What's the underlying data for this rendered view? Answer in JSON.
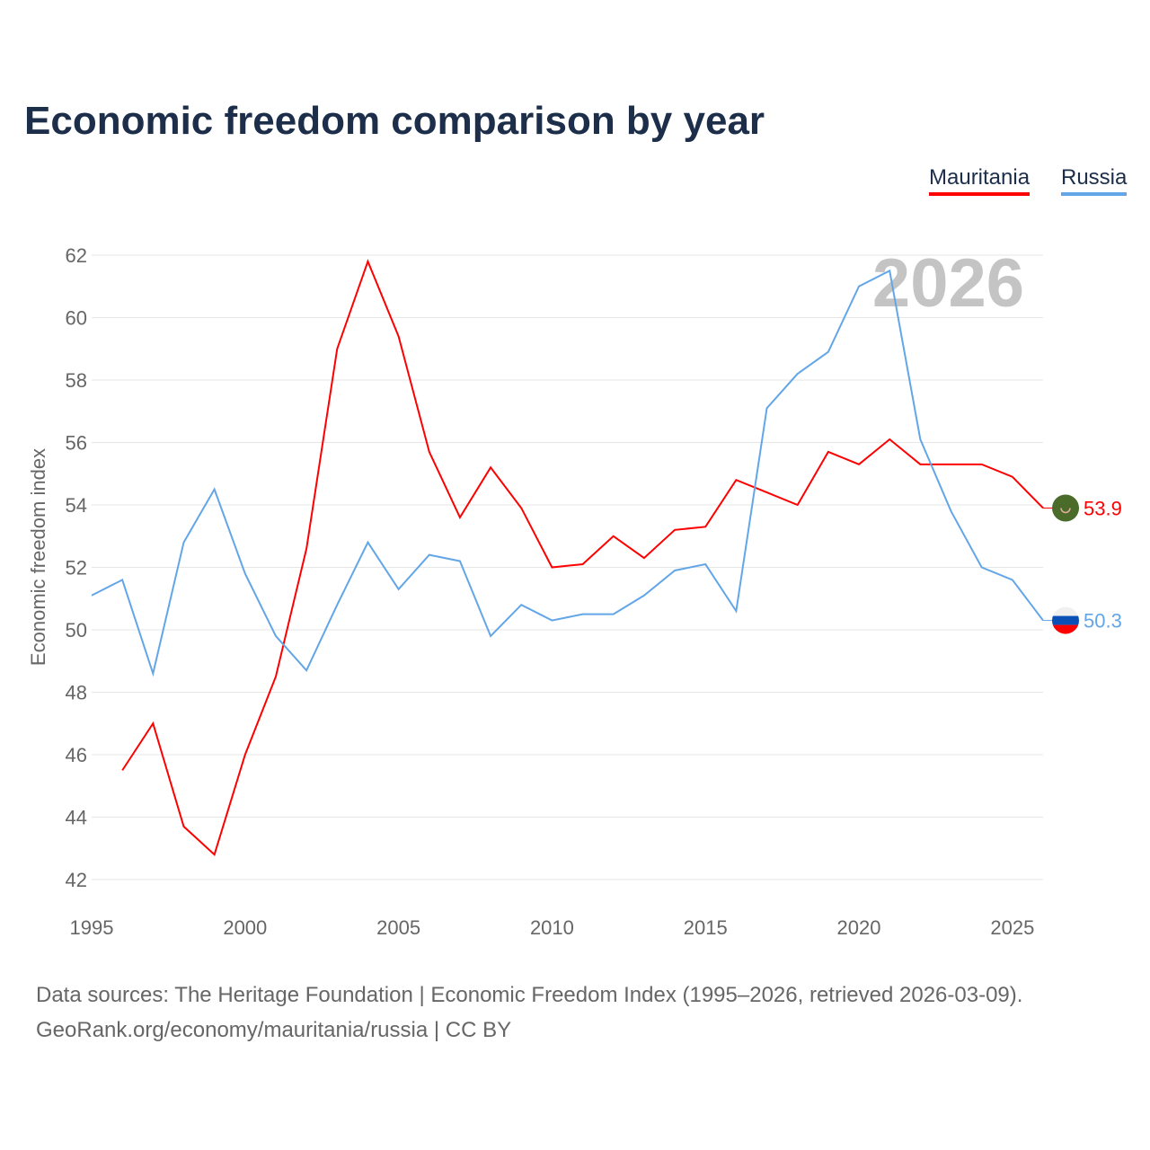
{
  "title": "Economic freedom comparison by year",
  "watermark_year": "2026",
  "legend": [
    "Mauritania",
    "Russia"
  ],
  "source_line1": "Data sources: The Heritage Foundation | Economic Freedom Index (1995–2026, retrieved 2026-03-09).",
  "source_line2": "GeoRank.org/economy/mauritania/russia | CC BY",
  "chart_data": {
    "type": "line",
    "title": "Economic freedom comparison by year",
    "xlabel": "",
    "ylabel": "Economic freedom index",
    "xlim": [
      1995,
      2026
    ],
    "ylim": [
      42,
      62
    ],
    "xticks": [
      1995,
      2000,
      2005,
      2010,
      2015,
      2020,
      2025
    ],
    "yticks": [
      42,
      44,
      46,
      48,
      50,
      52,
      54,
      56,
      58,
      60,
      62
    ],
    "grid": true,
    "legend_position": "top-right",
    "series": [
      {
        "name": "Mauritania",
        "color": "#ff0000",
        "end_label": "53.9",
        "x": [
          1996,
          1997,
          1998,
          1999,
          2000,
          2001,
          2002,
          2003,
          2004,
          2005,
          2006,
          2007,
          2008,
          2009,
          2010,
          2011,
          2012,
          2013,
          2014,
          2015,
          2016,
          2017,
          2018,
          2019,
          2020,
          2021,
          2022,
          2023,
          2024,
          2025,
          2026
        ],
        "values": [
          45.5,
          47.0,
          43.7,
          42.8,
          46.0,
          48.5,
          52.6,
          59.0,
          61.8,
          59.4,
          55.7,
          53.6,
          55.2,
          53.9,
          52.0,
          52.1,
          53.0,
          52.3,
          53.2,
          53.3,
          54.8,
          54.4,
          54.0,
          55.7,
          55.3,
          56.1,
          55.3,
          55.3,
          55.3,
          54.9,
          53.9
        ]
      },
      {
        "name": "Russia",
        "color": "#63a6e8",
        "end_label": "50.3",
        "x": [
          1995,
          1996,
          1997,
          1998,
          1999,
          2000,
          2001,
          2002,
          2003,
          2004,
          2005,
          2006,
          2007,
          2008,
          2009,
          2010,
          2011,
          2012,
          2013,
          2014,
          2015,
          2016,
          2017,
          2018,
          2019,
          2020,
          2021,
          2022,
          2023,
          2024,
          2025,
          2026
        ],
        "values": [
          51.1,
          51.6,
          48.6,
          52.8,
          54.5,
          51.8,
          49.8,
          48.7,
          50.8,
          52.8,
          51.3,
          52.4,
          52.2,
          49.8,
          50.8,
          50.3,
          50.5,
          50.5,
          51.1,
          51.9,
          52.1,
          50.6,
          57.1,
          58.2,
          58.9,
          61.0,
          61.5,
          56.1,
          53.8,
          52.0,
          51.6,
          50.3
        ]
      }
    ]
  }
}
